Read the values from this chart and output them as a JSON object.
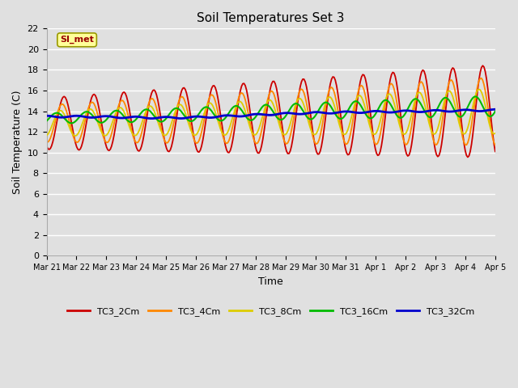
{
  "title": "Soil Temperatures Set 3",
  "xlabel": "Time",
  "ylabel": "Soil Temperature (C)",
  "ylim": [
    0,
    22
  ],
  "yticks": [
    0,
    2,
    4,
    6,
    8,
    10,
    12,
    14,
    16,
    18,
    20,
    22
  ],
  "background_color": "#e0e0e0",
  "plot_bg_color": "#e0e0e0",
  "grid_color": "#ffffff",
  "series_colors": [
    "#cc0000",
    "#ff8800",
    "#ddcc00",
    "#00bb00",
    "#0000cc"
  ],
  "series_labels": [
    "TC3_2Cm",
    "TC3_4Cm",
    "TC3_8Cm",
    "TC3_16Cm",
    "TC3_32Cm"
  ],
  "x_tick_labels": [
    "Mar 21",
    "Mar 22",
    "Mar 23",
    "Mar 24",
    "Mar 25",
    "Mar 26",
    "Mar 27",
    "Mar 28",
    "Mar 29",
    "Mar 30",
    "Mar 31",
    "Apr 1",
    "Apr 2",
    "Apr 3",
    "Apr 4",
    "Apr 5"
  ],
  "annotation_label": "SI_met",
  "annotation_color": "#990000",
  "annotation_bg": "#ffff99",
  "annotation_border": "#999900"
}
